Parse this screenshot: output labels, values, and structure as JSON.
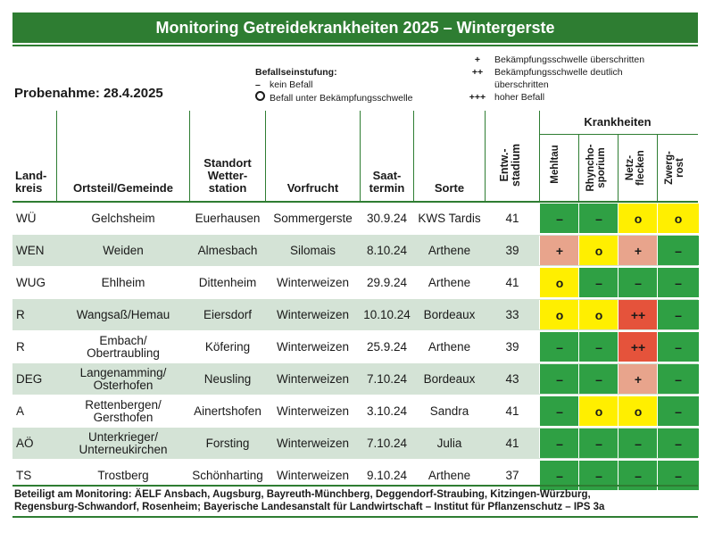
{
  "title": "Monitoring Getreidekrankheiten 2025 – Wintergerste",
  "probenahme": "Probenahme: 28.4.2025",
  "legend_befall": {
    "heading": "Befallseinstufung:",
    "items": [
      {
        "symbol": "–",
        "text": "kein Befall"
      },
      {
        "symbol": "o",
        "text": "Befall unter Bekämpfungsschwelle"
      }
    ]
  },
  "legend_schwelle": [
    {
      "symbol": "+",
      "text": "Bekämpfungsschwelle überschritten"
    },
    {
      "symbol": "++",
      "text": "Bekämpfungsschwelle deutlich überschritten"
    },
    {
      "symbol": "+++",
      "text": "hoher Befall"
    }
  ],
  "headers": {
    "landkreis": "Land-\nkreis",
    "ortsteil": "Ortsteil/Gemeinde",
    "standort": "Standort\nWetter-\nstation",
    "vorfrucht": "Vorfrucht",
    "saattermin": "Saat-\ntermin",
    "sorte": "Sorte",
    "entw": "Entw.-\nstadium",
    "krankheiten": "Krankheiten",
    "diseases": [
      "Mehltau",
      "Rhyncho-\nsporium",
      "Netz-\nflecken",
      "Zwerg-\nrost"
    ]
  },
  "rows": [
    {
      "lk": "WÜ",
      "ort": "Gelchsheim",
      "standort": "Euerhausen",
      "vorfrucht": "Sommergerste",
      "saat": "30.9.24",
      "sorte": "KWS Tardis",
      "entw": "41",
      "d": [
        "–",
        "–",
        "o",
        "o"
      ],
      "c": [
        "none",
        "none",
        "low",
        "low"
      ]
    },
    {
      "lk": "WEN",
      "ort": "Weiden",
      "standort": "Almesbach",
      "vorfrucht": "Silomais",
      "saat": "8.10.24",
      "sorte": "Arthene",
      "entw": "39",
      "d": [
        "+",
        "o",
        "+",
        "–"
      ],
      "c": [
        "plus",
        "low",
        "plus",
        "none"
      ]
    },
    {
      "lk": "WUG",
      "ort": "Ehlheim",
      "standort": "Dittenheim",
      "vorfrucht": "Winterweizen",
      "saat": "29.9.24",
      "sorte": "Arthene",
      "entw": "41",
      "d": [
        "o",
        "–",
        "–",
        "–"
      ],
      "c": [
        "low",
        "none",
        "none",
        "none"
      ]
    },
    {
      "lk": "R",
      "ort": "Wangsaß/Hemau",
      "standort": "Eiersdorf",
      "vorfrucht": "Winterweizen",
      "saat": "10.10.24",
      "sorte": "Bordeaux",
      "entw": "33",
      "d": [
        "o",
        "o",
        "++",
        "–"
      ],
      "c": [
        "low",
        "low",
        "pp",
        "none"
      ]
    },
    {
      "lk": "R",
      "ort": "Embach/\nObertraubling",
      "standort": "Köfering",
      "vorfrucht": "Winterweizen",
      "saat": "25.9.24",
      "sorte": "Arthene",
      "entw": "39",
      "d": [
        "–",
        "–",
        "++",
        "–"
      ],
      "c": [
        "none",
        "none",
        "pp",
        "none"
      ]
    },
    {
      "lk": "DEG",
      "ort": "Langenamming/\nOsterhofen",
      "standort": "Neusling",
      "vorfrucht": "Winterweizen",
      "saat": "7.10.24",
      "sorte": "Bordeaux",
      "entw": "43",
      "d": [
        "–",
        "–",
        "+",
        "–"
      ],
      "c": [
        "none",
        "none",
        "plus",
        "none"
      ]
    },
    {
      "lk": "A",
      "ort": "Rettenbergen/\nGersthofen",
      "standort": "Ainertshofen",
      "vorfrucht": "Winterweizen",
      "saat": "3.10.24",
      "sorte": "Sandra",
      "entw": "41",
      "d": [
        "–",
        "o",
        "o",
        "–"
      ],
      "c": [
        "none",
        "low",
        "low",
        "none"
      ]
    },
    {
      "lk": "AÖ",
      "ort": "Unterkrieger/\nUnterneukirchen",
      "standort": "Forsting",
      "vorfrucht": "Winterweizen",
      "saat": "7.10.24",
      "sorte": "Julia",
      "entw": "41",
      "d": [
        "–",
        "–",
        "–",
        "–"
      ],
      "c": [
        "none",
        "none",
        "none",
        "none"
      ]
    },
    {
      "lk": "TS",
      "ort": "Trostberg",
      "standort": "Schönharting",
      "vorfrucht": "Winterweizen",
      "saat": "9.10.24",
      "sorte": "Arthene",
      "entw": "37",
      "d": [
        "–",
        "–",
        "–",
        "–"
      ],
      "c": [
        "none",
        "none",
        "none",
        "none"
      ]
    }
  ],
  "footer": "Beteiligt am Monitoring: ÄELF Ansbach, Augsburg, Bayreuth-Münchberg, Deggendorf-Straubing, Kitzingen-Würzburg,\nRegensburg-Schwandorf, Rosenheim; Bayerische Landesanstalt für Landwirtschaft – Institut für Pflanzenschutz – IPS 3a"
}
